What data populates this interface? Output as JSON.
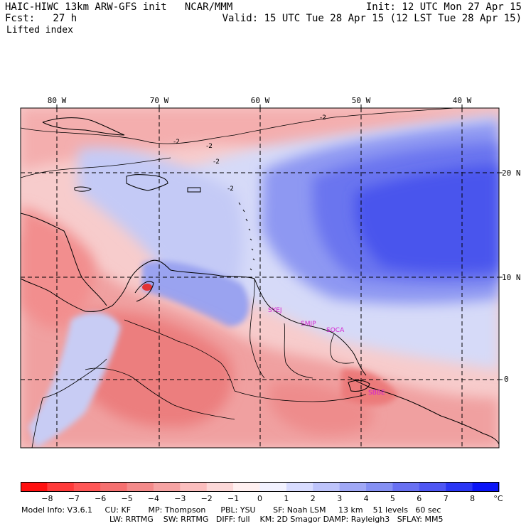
{
  "header": {
    "model_title": "HAIC-HIWC 13km ARW-GFS init   NCAR/MMM",
    "forecast": "Fcst:   27 h",
    "field": "Lifted index",
    "init": "Init: 12 UTC Mon 27 Apr 15",
    "valid": "Valid: 15 UTC Tue 28 Apr 15 (12 LST Tue 28 Apr 15)"
  },
  "axes": {
    "longitudes": [
      "80 W",
      "70 W",
      "60 W",
      "50 W",
      "40 W"
    ],
    "latitudes": [
      "20 N",
      "10 N",
      "0"
    ]
  },
  "contour_labels": [
    "-2",
    "-2",
    "-2",
    "-2",
    "-2"
  ],
  "stations": [
    "SYEJ",
    "SMJP",
    "SOCA",
    "SBBE"
  ],
  "colorbar": {
    "labels": [
      "−8",
      "−7",
      "−6",
      "−5",
      "−4",
      "−3",
      "−2",
      "−1",
      "0",
      "1",
      "2",
      "3",
      "4",
      "5",
      "6",
      "7",
      "8"
    ],
    "unit": "°C",
    "colors": [
      "#ff1010",
      "#ff3a3a",
      "#ff5656",
      "#f57070",
      "#f48a8a",
      "#f6a3a3",
      "#fbbebe",
      "#fcd8d8",
      "#fff0f0",
      "#f2f2ff",
      "#d8dcff",
      "#bec4fb",
      "#a0a8f6",
      "#8590f4",
      "#6870f2",
      "#4e56f4",
      "#2a36f5",
      "#0a14f8"
    ]
  },
  "footer": {
    "line1": "Model Info: V3.6.1     CU: KF       MP: Thompson      PBL: YSU       SF: Noah LSM     13 km    51 levels   60 sec",
    "line2": "LW: RRTMG    SW: RRTMG   DIFF: full    KM: 2D Smagor DAMP: Rayleigh3   SFLAY: MM5"
  }
}
